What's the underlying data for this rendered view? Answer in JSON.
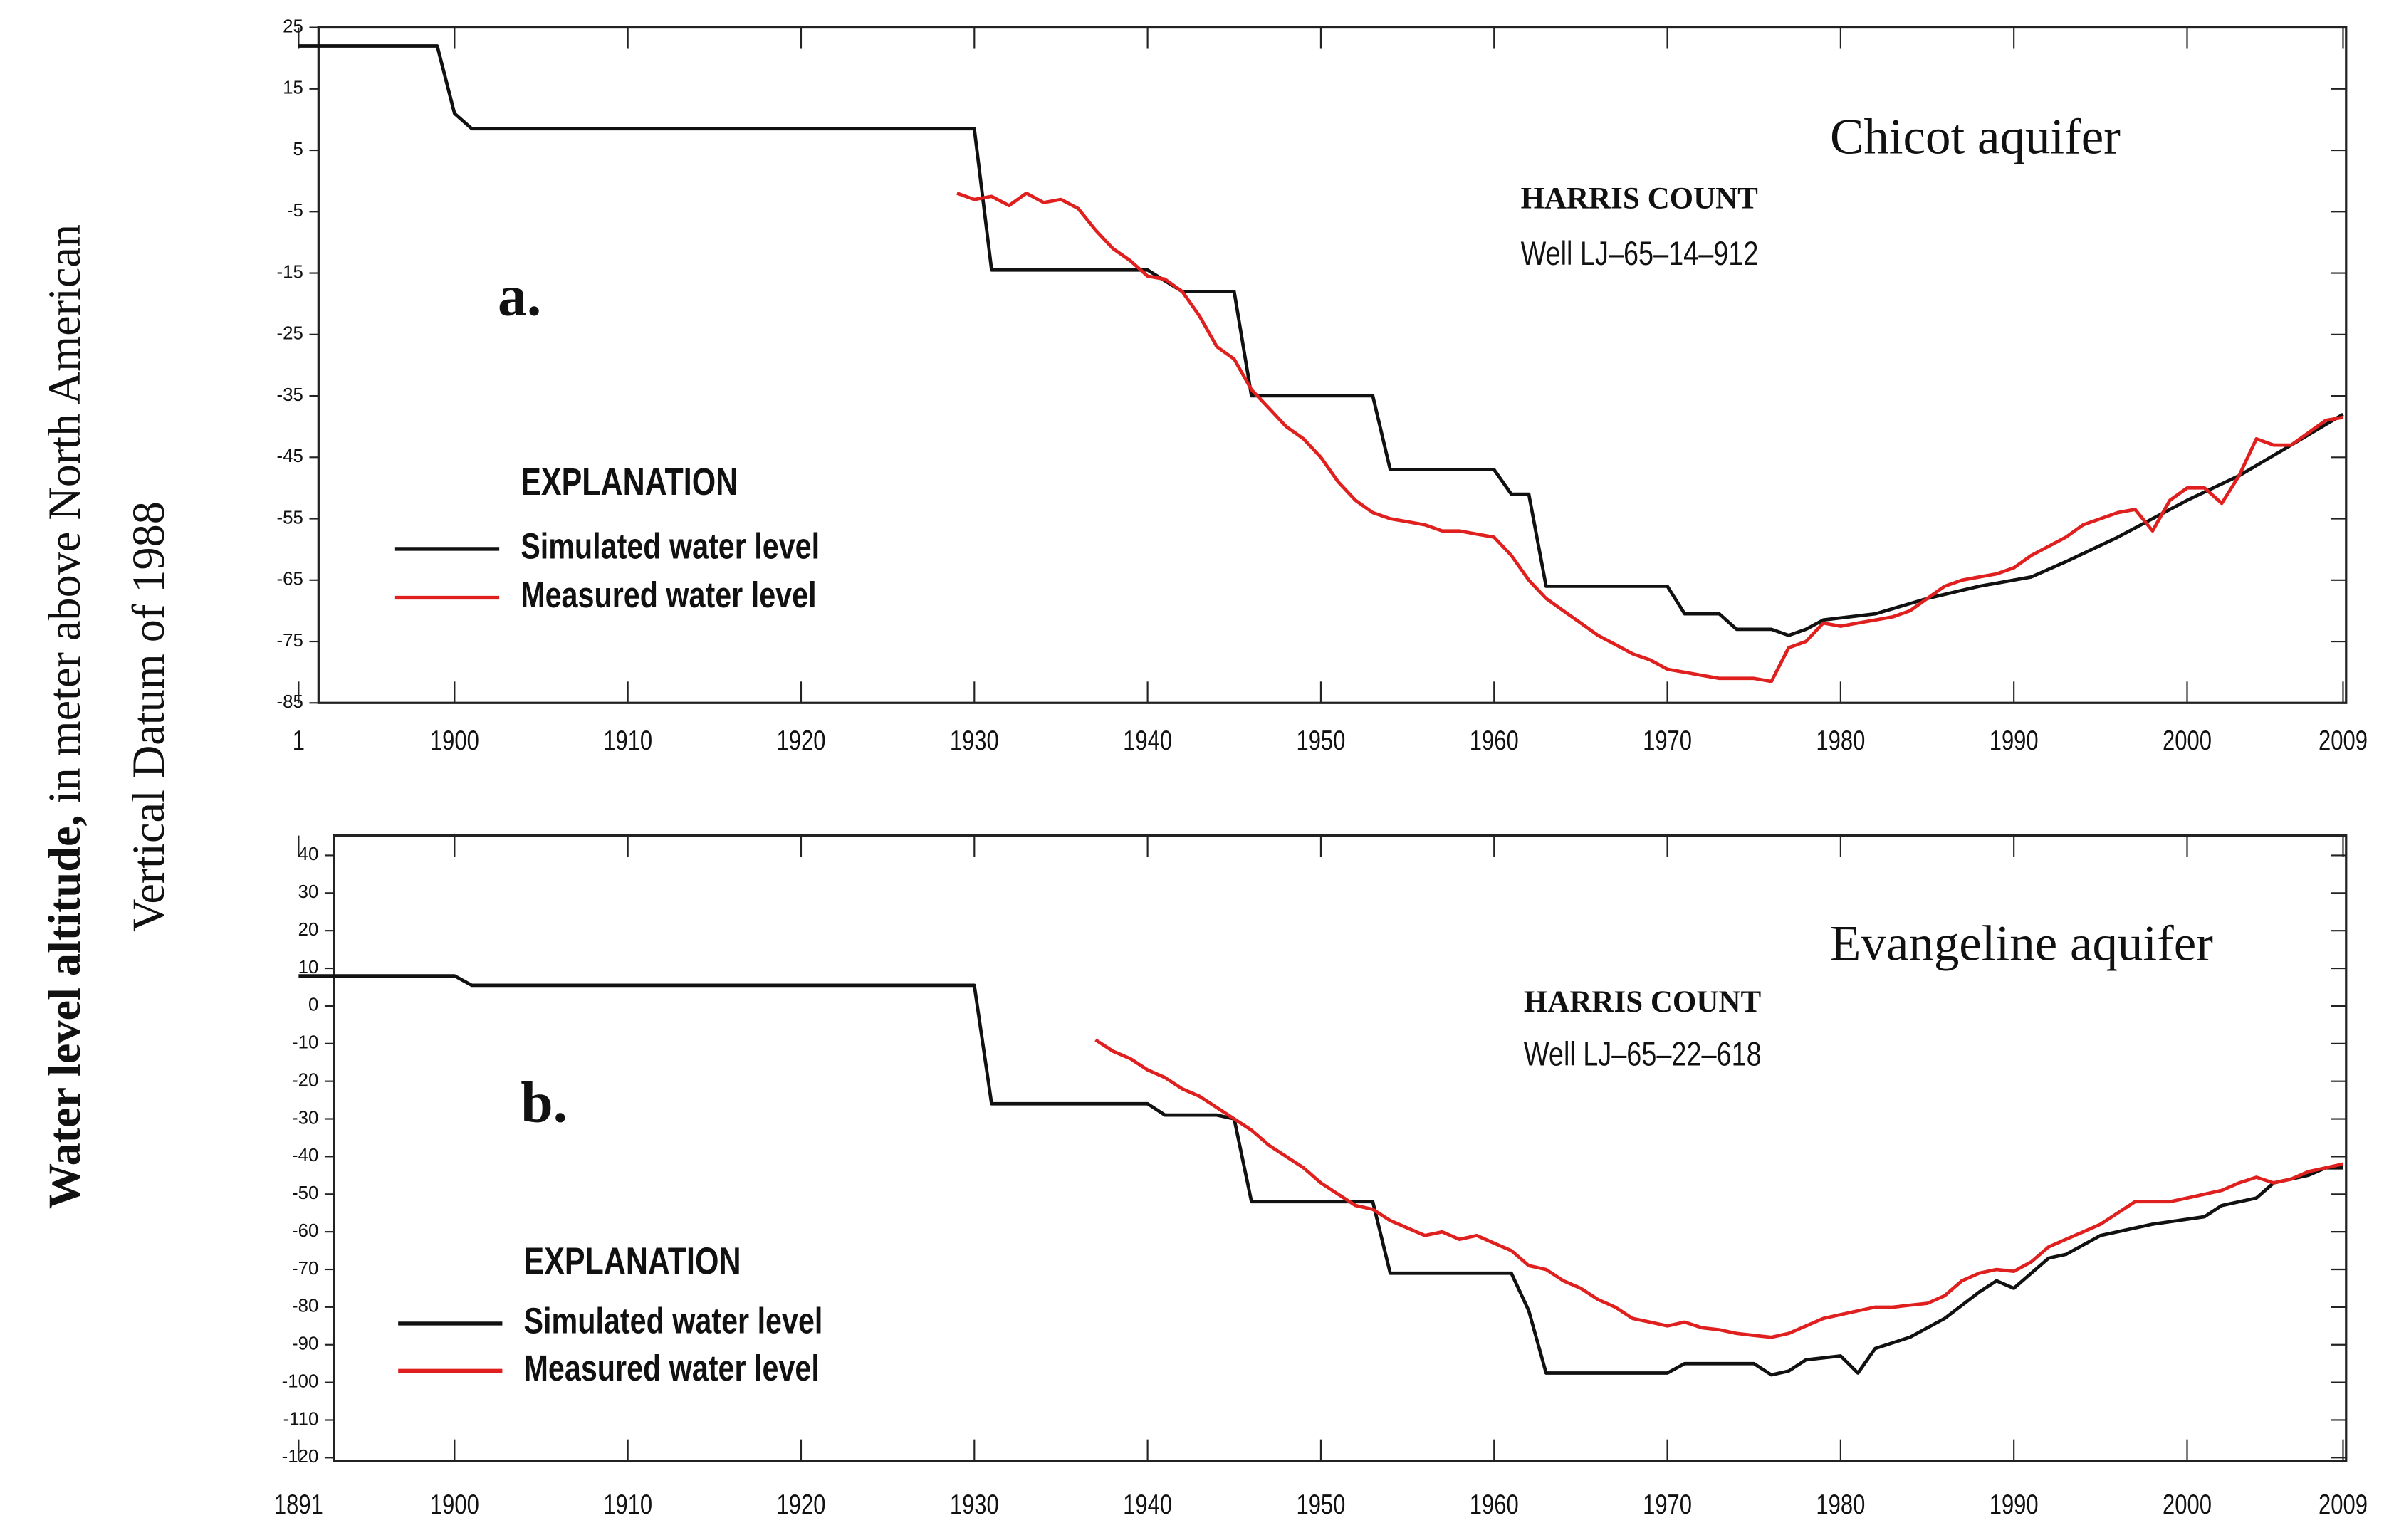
{
  "ylabel": {
    "bold": "Water level altitude,",
    "rest": " in meter above North American",
    "line2": "Vertical Datum of 1988"
  },
  "chart_data": [
    {
      "type": "line",
      "title": "Chicot aquifer",
      "county": "HARRIS COUNT",
      "well": "Well LJ–65–14–912",
      "panel": "a.",
      "legend_title": "EXPLANATION",
      "xlim": [
        1891,
        2009
      ],
      "ylim": [
        -85,
        25
      ],
      "xticks": [
        {
          "value": 1891,
          "label": "1"
        },
        1900,
        1910,
        1920,
        1930,
        1940,
        1950,
        1960,
        1970,
        1980,
        1990,
        2000,
        2009
      ],
      "yticks": [
        25,
        15,
        5,
        -5,
        -15,
        -25,
        -35,
        -45,
        -55,
        -65,
        -75,
        -85
      ],
      "series": [
        {
          "name": "Simulated water level",
          "color": "#111111",
          "x": [
            1891,
            1899,
            1900,
            1901,
            1930,
            1931,
            1940,
            1942,
            1945,
            1946,
            1953,
            1954,
            1960,
            1961,
            1962,
            1963,
            1970,
            1971,
            1973,
            1974,
            1976,
            1977,
            1978,
            1979,
            1982,
            1985,
            1988,
            1991,
            1993,
            1996,
            2000,
            2003,
            2006,
            2009
          ],
          "values": [
            22,
            22,
            11,
            8.5,
            8.5,
            -14.5,
            -14.5,
            -18,
            -18,
            -35,
            -35,
            -47,
            -47,
            -51,
            -51,
            -66,
            -66,
            -70.5,
            -70.5,
            -73,
            -73,
            -74,
            -73,
            -71.5,
            -70.5,
            -68,
            -66,
            -64.5,
            -62,
            -58,
            -52,
            -48,
            -43,
            -38
          ]
        },
        {
          "name": "Measured water level",
          "color": "#e0201e",
          "x": [
            1929,
            1930,
            1931,
            1932,
            1933,
            1934,
            1935,
            1936,
            1937,
            1938,
            1939,
            1940,
            1941,
            1942,
            1943,
            1944,
            1945,
            1946,
            1947,
            1948,
            1949,
            1950,
            1951,
            1952,
            1953,
            1954,
            1955,
            1956,
            1957,
            1958,
            1959,
            1960,
            1961,
            1962,
            1963,
            1964,
            1965,
            1966,
            1967,
            1968,
            1969,
            1970,
            1971,
            1972,
            1973,
            1974,
            1975,
            1976,
            1977,
            1978,
            1979,
            1980,
            1981,
            1982,
            1983,
            1984,
            1985,
            1986,
            1987,
            1988,
            1989,
            1990,
            1991,
            1992,
            1993,
            1994,
            1995,
            1996,
            1997,
            1998,
            1999,
            2000,
            2001,
            2002,
            2003,
            2004,
            2005,
            2006,
            2007,
            2008,
            2009
          ],
          "values": [
            -2,
            -3,
            -2.5,
            -4,
            -2,
            -3.5,
            -3,
            -4.5,
            -8,
            -11,
            -13,
            -15.5,
            -16,
            -18,
            -22,
            -27,
            -29,
            -34,
            -37,
            -40,
            -42,
            -45,
            -49,
            -52,
            -54,
            -55,
            -55.5,
            -56,
            -57,
            -57,
            -57.5,
            -58,
            -61,
            -65,
            -68,
            -70,
            -72,
            -74,
            -75.5,
            -77,
            -78,
            -79.5,
            -80,
            -80.5,
            -81,
            -81,
            -81,
            -81.5,
            -76,
            -75,
            -72,
            -72.5,
            -72,
            -71.5,
            -71,
            -70,
            -68,
            -66,
            -65,
            -64.5,
            -64,
            -63,
            -61,
            -59.5,
            -58,
            -56,
            -55,
            -54,
            -53.5,
            -57,
            -52,
            -50,
            -50,
            -52.5,
            -48,
            -42,
            -43,
            -43,
            -41,
            -39,
            -38.5
          ]
        }
      ]
    },
    {
      "type": "line",
      "title": "Evangeline aquifer",
      "county": "HARRIS COUNT",
      "well": "Well LJ–65–22–618",
      "panel": "b.",
      "legend_title": "EXPLANATION",
      "xlim": [
        1891,
        2009
      ],
      "ylim": [
        -120,
        40
      ],
      "xticks": [
        1891,
        1900,
        1910,
        1920,
        1930,
        1940,
        1950,
        1960,
        1970,
        1980,
        1990,
        2000,
        2009
      ],
      "yticks": [
        40,
        30,
        20,
        10,
        0,
        -10,
        -20,
        -30,
        -40,
        -50,
        -60,
        -70,
        -80,
        -90,
        -100,
        -110,
        -120
      ],
      "series": [
        {
          "name": "Simulated water level",
          "color": "#111111",
          "x": [
            1891,
            1900,
            1901,
            1930,
            1931,
            1940,
            1941,
            1944,
            1945,
            1946,
            1953,
            1954,
            1961,
            1962,
            1963,
            1970,
            1971,
            1975,
            1976,
            1977,
            1978,
            1980,
            1981,
            1982,
            1984,
            1986,
            1988,
            1989,
            1990,
            1992,
            1993,
            1995,
            1998,
            2001,
            2002,
            2004,
            2005,
            2007,
            2008,
            2009
          ],
          "values": [
            8,
            8,
            5.5,
            5.5,
            -26,
            -26,
            -29,
            -29,
            -30,
            -52,
            -52,
            -71,
            -71,
            -81,
            -97.5,
            -97.5,
            -95,
            -95,
            -98,
            -97,
            -94,
            -93,
            -97.5,
            -91,
            -88,
            -83,
            -76,
            -73,
            -75,
            -67,
            -66,
            -61,
            -58,
            -56,
            -53,
            -51,
            -47,
            -45,
            -43,
            -43
          ]
        },
        {
          "name": "Measured water level",
          "color": "#e0201e",
          "x": [
            1937,
            1938,
            1939,
            1940,
            1941,
            1942,
            1943,
            1944,
            1945,
            1946,
            1947,
            1948,
            1949,
            1950,
            1951,
            1952,
            1953,
            1954,
            1955,
            1956,
            1957,
            1958,
            1959,
            1960,
            1961,
            1962,
            1963,
            1964,
            1965,
            1966,
            1967,
            1968,
            1969,
            1970,
            1971,
            1972,
            1973,
            1974,
            1975,
            1976,
            1977,
            1978,
            1979,
            1980,
            1981,
            1982,
            1983,
            1984,
            1985,
            1986,
            1987,
            1988,
            1989,
            1990,
            1991,
            1992,
            1993,
            1994,
            1995,
            1996,
            1997,
            1998,
            1999,
            2000,
            2001,
            2002,
            2003,
            2004,
            2005,
            2006,
            2007,
            2008,
            2009
          ],
          "values": [
            -9,
            -12,
            -14,
            -17,
            -19,
            -22,
            -24,
            -27,
            -30,
            -33,
            -37,
            -40,
            -43,
            -47,
            -50,
            -53,
            -54,
            -57,
            -59,
            -61,
            -60,
            -62,
            -61,
            -63,
            -65,
            -69,
            -70,
            -73,
            -75,
            -78,
            -80,
            -83,
            -84,
            -85,
            -84,
            -85.5,
            -86,
            -87,
            -87.5,
            -88,
            -87,
            -85,
            -83,
            -82,
            -81,
            -80,
            -80,
            -79.5,
            -79,
            -77,
            -73,
            -71,
            -70,
            -70.5,
            -68,
            -64,
            -62,
            -60,
            -58,
            -55,
            -52,
            -52,
            -52,
            -51,
            -50,
            -49,
            -47,
            -45.5,
            -47,
            -46,
            -44,
            -43,
            -42
          ]
        }
      ]
    }
  ]
}
